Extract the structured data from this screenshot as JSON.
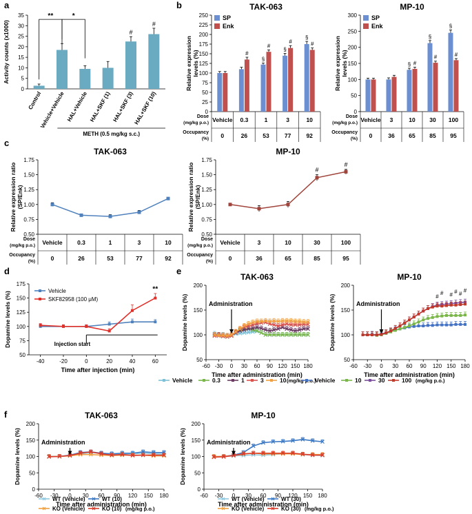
{
  "panel_labels": [
    "a",
    "b",
    "c",
    "d",
    "e",
    "f"
  ],
  "chart_data": [
    {
      "id": "a",
      "type": "bar",
      "ylabel": "Activity counts (x1000)",
      "ylim": [
        0,
        35
      ],
      "yticks": [
        0,
        5,
        10,
        15,
        20,
        25,
        30,
        35
      ],
      "categories": [
        "Control",
        "Vehicle+Vehicle",
        "HAL+Vehicle",
        "HAL+SKF (1)",
        "HAL+SKF (3)",
        "HAL+SKF (10)"
      ],
      "values": [
        1.5,
        18.5,
        9.5,
        10,
        22.5,
        26
      ],
      "errors": [
        0.8,
        3,
        1.5,
        3,
        2.3,
        2.8
      ],
      "marks": [
        "",
        "",
        "",
        "",
        "#",
        "#"
      ],
      "sig": [
        {
          "text": "**",
          "from": 0,
          "to": 1
        },
        {
          "text": "*",
          "from": 1,
          "to": 2
        }
      ],
      "footnote": "METH (0.5 mg/kg s.c.)",
      "color": "#6aabc2"
    },
    {
      "id": "b1",
      "type": "bar",
      "title": "TAK-063",
      "ylabel": "Relative expression levels (%)",
      "ylim": [
        0,
        250
      ],
      "yticks": [
        0,
        25,
        50,
        75,
        100,
        125,
        150,
        175,
        200,
        225,
        250
      ],
      "legend": [
        "SP",
        "Enk"
      ],
      "series": [
        {
          "name": "SP",
          "values": [
            100,
            110,
            122,
            145,
            175
          ],
          "errors": [
            4,
            5,
            4,
            6,
            7
          ],
          "marks": [
            "",
            "",
            "§",
            "§",
            "§"
          ],
          "color": "#6b8fd0"
        },
        {
          "name": "Enk",
          "values": [
            100,
            135,
            155,
            165,
            160
          ],
          "errors": [
            4,
            6,
            5,
            6,
            5
          ],
          "marks": [
            "",
            "#",
            "#",
            "#",
            "#"
          ],
          "color": "#c0504d"
        }
      ],
      "table": {
        "row1_label": "Dose",
        "row1_unit": "(mg/kg p.o.)",
        "row2_label": "Occupancy",
        "row2_unit": "(%)",
        "doses": [
          "Vehicle",
          "0.3",
          "1",
          "3",
          "10"
        ],
        "occupancy": [
          "0",
          "26",
          "53",
          "77",
          "92"
        ]
      }
    },
    {
      "id": "b2",
      "type": "bar",
      "title": "MP-10",
      "ylabel": "Relative expression levels (%)",
      "ylim": [
        0,
        300
      ],
      "yticks": [
        0,
        50,
        100,
        150,
        200,
        250,
        300
      ],
      "legend": [
        "SP",
        "Enk"
      ],
      "series": [
        {
          "name": "SP",
          "values": [
            100,
            100,
            130,
            213,
            245
          ],
          "errors": [
            4,
            5,
            5,
            8,
            9
          ],
          "marks": [
            "",
            "",
            "§",
            "§",
            "§"
          ],
          "color": "#6b8fd0"
        },
        {
          "name": "Enk",
          "values": [
            100,
            108,
            133,
            152,
            160
          ],
          "errors": [
            4,
            5,
            5,
            5,
            5
          ],
          "marks": [
            "",
            "",
            "#",
            "#",
            "#"
          ],
          "color": "#c0504d"
        }
      ],
      "table": {
        "row1_label": "Dose",
        "row1_unit": "(mg/kg p.o.)",
        "row2_label": "Occupancy",
        "row2_unit": "(%)",
        "doses": [
          "Vehicle",
          "3",
          "10",
          "30",
          "100"
        ],
        "occupancy": [
          "0",
          "36",
          "65",
          "85",
          "95"
        ]
      }
    },
    {
      "id": "c1",
      "type": "line",
      "title": "TAK-063",
      "ylabel": "Relative expression ratio (SP/Enk)",
      "ylim": [
        0.5,
        1.75
      ],
      "yticks": [
        "0.50",
        "0.75",
        "1.00",
        "1.25",
        "1.50",
        "1.75"
      ],
      "values": [
        1.0,
        0.82,
        0.8,
        0.87,
        1.1
      ],
      "errors": [
        0.03,
        0.02,
        0.03,
        0.03,
        0.02
      ],
      "marks": [
        "",
        "",
        "",
        "",
        ""
      ],
      "color": "#4f81bd",
      "table": {
        "row1_label": "Dose",
        "row1_unit": "(mg/kg p.o.)",
        "row2_label": "Occupancy",
        "row2_unit": "(%)",
        "doses": [
          "Vehicle",
          "0.3",
          "1",
          "3",
          "10"
        ],
        "occupancy": [
          "0",
          "26",
          "53",
          "77",
          "92"
        ]
      }
    },
    {
      "id": "c2",
      "type": "line",
      "title": "MP-10",
      "ylabel": "Relative expression ratio (SP/Enk)",
      "ylim": [
        0.5,
        1.75
      ],
      "yticks": [
        "0.50",
        "0.75",
        "1.00",
        "1.25",
        "1.50",
        "1.75"
      ],
      "values": [
        1.0,
        0.93,
        1.0,
        1.45,
        1.55
      ],
      "errors": [
        0.02,
        0.05,
        0.05,
        0.05,
        0.04
      ],
      "marks": [
        "",
        "",
        "",
        "#",
        "#"
      ],
      "color": "#a0433a",
      "table": {
        "row1_label": "Dose",
        "row1_unit": "(mg/kg p.o.)",
        "row2_label": "Occupancy",
        "row2_unit": "(%)",
        "doses": [
          "Vehicle",
          "3",
          "10",
          "30",
          "100"
        ],
        "occupancy": [
          "0",
          "36",
          "65",
          "85",
          "95"
        ]
      }
    },
    {
      "id": "d",
      "type": "line",
      "xlabel": "Time after injection (min)",
      "ylabel": "Dopamine levels (%)",
      "xlim": [
        -50,
        70
      ],
      "xticks": [
        -40,
        -20,
        0,
        20,
        40,
        60
      ],
      "ylim": [
        50,
        175
      ],
      "yticks": [
        50,
        75,
        100,
        125,
        150,
        175
      ],
      "x": [
        -40,
        -20,
        0,
        20,
        40,
        60
      ],
      "series": [
        {
          "name": "Vehicle",
          "values": [
            100,
            100,
            100,
            104,
            108,
            108
          ],
          "errors": [
            4,
            3,
            3,
            4,
            5,
            4
          ],
          "color": "#4f81bd"
        },
        {
          "name": "SKF82958 (100 μM)",
          "values": [
            102,
            100,
            100,
            92,
            128,
            150
          ],
          "errors": [
            3,
            3,
            3,
            4,
            10,
            8
          ],
          "color": "#e0302a"
        }
      ],
      "annotations": {
        "sig": "**",
        "injection": "Injection start"
      }
    },
    {
      "id": "e1",
      "type": "line",
      "title": "TAK-063",
      "xlabel": "Time after administration (min)",
      "ylabel": "Dopamine levels (%)",
      "xlim": [
        -60,
        180
      ],
      "xticks": [
        -60,
        -30,
        0,
        30,
        60,
        90,
        120,
        150,
        180
      ],
      "ylim": [
        50,
        200
      ],
      "yticks": [
        50,
        100,
        150,
        200
      ],
      "x": [
        -40,
        -30,
        -20,
        -10,
        0,
        10,
        20,
        30,
        40,
        50,
        60,
        70,
        80,
        90,
        100,
        110,
        120,
        130,
        140,
        150,
        160,
        170,
        180
      ],
      "series": [
        {
          "name": "Vehicle",
          "color": "#7cc1d8",
          "values": [
            102,
            100,
            100,
            98,
            100,
            102,
            103,
            104,
            105,
            106,
            107,
            104,
            100,
            100,
            100,
            100,
            100,
            100,
            100,
            100,
            100,
            100,
            100
          ]
        },
        {
          "name": "0.3",
          "color": "#7ab648",
          "values": [
            100,
            98,
            97,
            96,
            98,
            104,
            110,
            112,
            112,
            110,
            108,
            104,
            100,
            100,
            100,
            100,
            100,
            100,
            100,
            100,
            100,
            100,
            100
          ]
        },
        {
          "name": "1",
          "color": "#6b3a62",
          "values": [
            100,
            100,
            99,
            98,
            100,
            104,
            108,
            110,
            112,
            113,
            115,
            113,
            110,
            108,
            110,
            112,
            115,
            112,
            110,
            108,
            110,
            112,
            112
          ]
        },
        {
          "name": "3",
          "color": "#d9534f",
          "values": [
            98,
            98,
            97,
            96,
            98,
            105,
            112,
            116,
            118,
            120,
            123,
            124,
            125,
            122,
            120,
            118,
            120,
            122,
            120,
            120,
            120,
            121,
            121
          ]
        },
        {
          "name": "10",
          "color": "#f0a040",
          "values": [
            100,
            99,
            99,
            98,
            100,
            106,
            112,
            118,
            122,
            125,
            127,
            127,
            128,
            127,
            128,
            127,
            128,
            128,
            128,
            127,
            127,
            126,
            126
          ]
        }
      ],
      "annotation": "Administration"
    },
    {
      "id": "e2",
      "type": "line",
      "title": "MP-10",
      "xlabel": "Time after administration (min)",
      "ylabel": "Dopamine levels (%)",
      "xlim": [
        -60,
        180
      ],
      "xticks": [
        -60,
        -30,
        0,
        30,
        60,
        90,
        120,
        150,
        180
      ],
      "ylim": [
        50,
        200
      ],
      "yticks": [
        50,
        100,
        150,
        200
      ],
      "x": [
        -40,
        -30,
        -20,
        -10,
        0,
        10,
        20,
        30,
        40,
        50,
        60,
        70,
        80,
        90,
        100,
        110,
        120,
        130,
        140,
        150,
        160,
        170,
        180
      ],
      "series": [
        {
          "name": "Vehicle",
          "color": "#4472c4",
          "values": [
            100,
            100,
            101,
            100,
            102,
            104,
            107,
            110,
            112,
            114,
            116,
            117,
            118,
            118,
            119,
            119,
            120,
            120,
            120,
            120,
            121,
            121,
            121
          ]
        },
        {
          "name": "10",
          "color": "#7ab648",
          "values": [
            100,
            100,
            100,
            99,
            100,
            103,
            106,
            109,
            112,
            115,
            118,
            122,
            126,
            130,
            133,
            135,
            137,
            138,
            139,
            139,
            139,
            139,
            140
          ]
        },
        {
          "name": "30",
          "color": "#7b4d9e",
          "values": [
            100,
            100,
            100,
            100,
            101,
            104,
            108,
            113,
            118,
            124,
            130,
            136,
            142,
            148,
            153,
            157,
            160,
            161,
            162,
            163,
            164,
            165,
            166
          ]
        },
        {
          "name": "100",
          "color": "#c0392b",
          "values": [
            100,
            100,
            100,
            100,
            101,
            104,
            108,
            113,
            118,
            124,
            130,
            136,
            142,
            148,
            153,
            156,
            158,
            158,
            159,
            160,
            160,
            161,
            162
          ]
        }
      ],
      "marks": [
        "#",
        "#",
        "#",
        "#",
        "#",
        "#"
      ],
      "annotation": "Administration"
    },
    {
      "id": "f1",
      "type": "line",
      "title": "TAK-063",
      "xlabel": "Time after administration (min)",
      "ylabel": "Dopamine levels (%)",
      "xlim": [
        -60,
        180
      ],
      "xticks": [
        -60,
        -30,
        0,
        30,
        60,
        90,
        120,
        150,
        180
      ],
      "ylim": [
        0,
        200
      ],
      "yticks": [
        0,
        50,
        100,
        150,
        200
      ],
      "x": [
        -40,
        -20,
        0,
        20,
        40,
        60,
        80,
        100,
        120,
        140,
        160,
        180
      ],
      "series": [
        {
          "name": "WT (Vehicle)",
          "color": "#8ec9e0",
          "values": [
            100,
            100,
            103,
            108,
            112,
            110,
            108,
            108,
            108,
            110,
            108,
            107
          ]
        },
        {
          "name": "WT (10)",
          "color": "#3a78c4",
          "values": [
            100,
            100,
            104,
            112,
            114,
            110,
            108,
            110,
            110,
            114,
            112,
            112
          ]
        },
        {
          "name": "KO (Vehicle)",
          "color": "#f0a040",
          "values": [
            100,
            100,
            102,
            106,
            106,
            104,
            103,
            104,
            104,
            104,
            102,
            102
          ]
        },
        {
          "name": "KO (10)",
          "color": "#d93a2a",
          "values": [
            99,
            100,
            103,
            110,
            114,
            108,
            104,
            106,
            103,
            104,
            104,
            104
          ]
        }
      ],
      "annotation": "Administration"
    },
    {
      "id": "f2",
      "type": "line",
      "title": "MP-10",
      "xlabel": "Time after administration (min)",
      "ylabel": "Dopamine levels (%)",
      "xlim": [
        -60,
        180
      ],
      "xticks": [
        -60,
        -30,
        0,
        30,
        60,
        90,
        120,
        150,
        180
      ],
      "ylim": [
        0,
        200
      ],
      "yticks": [
        0,
        50,
        100,
        150,
        200
      ],
      "x": [
        -40,
        -20,
        0,
        20,
        40,
        60,
        80,
        100,
        120,
        140,
        160,
        180
      ],
      "series": [
        {
          "name": "WT (Vehicle)",
          "color": "#8ec9e0",
          "values": [
            100,
            100,
            102,
            103,
            105,
            104,
            106,
            108,
            110,
            106,
            104,
            103
          ]
        },
        {
          "name": "WT (30)",
          "color": "#3a78c4",
          "values": [
            99,
            100,
            104,
            112,
            132,
            142,
            145,
            146,
            148,
            152,
            148,
            145
          ]
        },
        {
          "name": "KO (Vehicle)",
          "color": "#f0a040",
          "values": [
            100,
            100,
            103,
            107,
            110,
            108,
            108,
            108,
            108,
            106,
            106,
            106
          ]
        },
        {
          "name": "KO (30)",
          "color": "#d93a2a",
          "values": [
            98,
            99,
            103,
            108,
            110,
            110,
            110,
            110,
            110,
            107,
            104,
            104
          ]
        }
      ],
      "annotation": "Administration"
    }
  ],
  "legends": {
    "e_tak_suffix": "(mg/kg p.o.)",
    "e_mp_suffix": "(mg/kg p.o.)",
    "f_tak_suffix": "(mg/kg p.o.)",
    "f_mp_suffix": "(mg/kg p.o.)"
  }
}
